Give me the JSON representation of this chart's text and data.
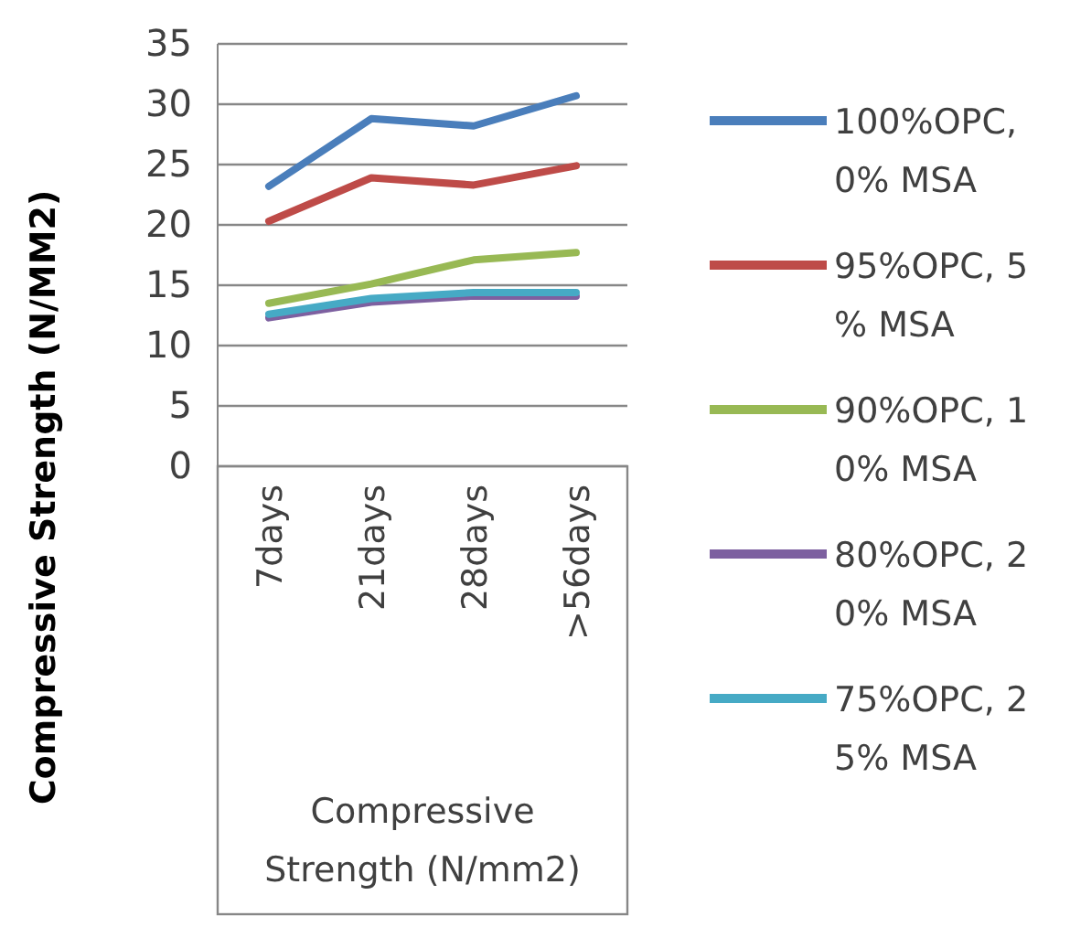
{
  "chart_data": {
    "type": "line",
    "ylabel": "Compressive Strength (N/MM2)",
    "xlabel": "Compressive Strength (N/mm2)",
    "categories": [
      "7days",
      "21days",
      "28days",
      ">56days"
    ],
    "ylim": [
      0,
      35
    ],
    "yticks": [
      0,
      5,
      10,
      15,
      20,
      25,
      30,
      35
    ],
    "grid": "y",
    "legend": "right",
    "line_style": "solid",
    "marker": "none",
    "series": [
      {
        "name": "100%OPC, 0% MSA",
        "color": "#4a7ebb",
        "values": [
          23.2,
          28.8,
          28.2,
          30.7
        ]
      },
      {
        "name": "95%OPC, 5% MSA",
        "color": "#be4b48",
        "values": [
          20.3,
          23.9,
          23.3,
          24.9
        ]
      },
      {
        "name": "90%OPC, 10% MSA",
        "color": "#98b954",
        "values": [
          13.5,
          15.1,
          17.1,
          17.7
        ]
      },
      {
        "name": "80%OPC, 20% MSA",
        "color": "#7d60a0",
        "values": [
          12.3,
          13.6,
          14.1,
          14.1
        ]
      },
      {
        "name": "75%OPC, 25% MSA",
        "color": "#46aac5",
        "values": [
          12.6,
          13.9,
          14.4,
          14.4
        ]
      }
    ]
  }
}
